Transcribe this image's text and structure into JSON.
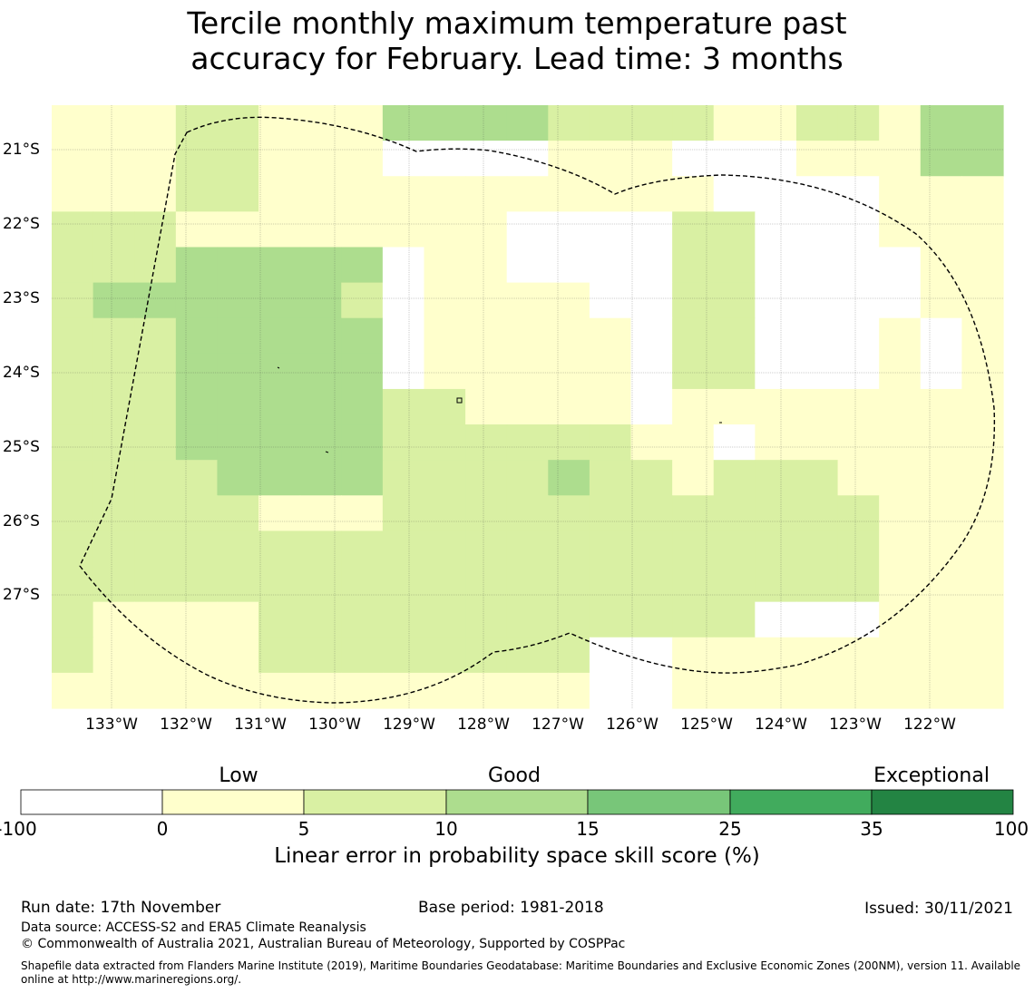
{
  "title": {
    "line1": "Tercile monthly maximum temperature past",
    "line2": "accuracy for February. Lead time: 3 months"
  },
  "map": {
    "lat_labels": [
      "21°S",
      "22°S",
      "23°S",
      "24°S",
      "25°S",
      "26°S",
      "27°S"
    ],
    "lon_labels": [
      "133°W",
      "132°W",
      "131°W",
      "130°W",
      "129°W",
      "128°W",
      "127°W",
      "126°W",
      "125°W",
      "124°W",
      "123°W",
      "122°W"
    ],
    "category_colors": [
      "#ffffff",
      "#ffffcc",
      "#d9f0a3",
      "#addd8e",
      "#78c679",
      "#41ab5d",
      "#238443"
    ],
    "grid": [
      "11122111333322221122133",
      "11122111000011100011133",
      "11122111111111110000111",
      "22211111111000022000111",
      "22233333011000022000011",
      "23333332011110022000011",
      "22233333011111022000101",
      "22233333011111022000101",
      "22233333221111011111111",
      "22233333222222110111111",
      "22223333222232212221111",
      "22222111222222222222111",
      "22222222222222222222111",
      "22222222222222222222111",
      "21111222222222222000111",
      "21111222222220011111111",
      "11111111111110011111111"
    ]
  },
  "colorbar": {
    "categories": [
      "Low",
      "Good",
      "Exceptional"
    ],
    "ticks": [
      "-100",
      "0",
      "5",
      "10",
      "15",
      "25",
      "35",
      "100"
    ],
    "colors": [
      "#ffffff",
      "#ffffcc",
      "#d9f0a3",
      "#addd8e",
      "#78c679",
      "#41ab5d",
      "#238443"
    ],
    "label": "Linear error in probability space skill score (%)"
  },
  "footer": {
    "run_date": "Run date: 17th November",
    "base_period": "Base period: 1981-2018",
    "issued": "Issued: 30/11/2021",
    "data_source": "Data source: ACCESS-S2 and ERA5 Climate Reanalysis",
    "copyright": "© Commonwealth of Australia 2021, Australian Bureau of Meteorology, Supported by COSPPac",
    "shapefile": "Shapefile data extracted from Flanders Marine Institute (2019), Maritime Boundaries Geodatabase: Maritime Boundaries and Exclusive Economic Zones (200NM), version 11. Available online at http://www.marineregions.org/."
  }
}
